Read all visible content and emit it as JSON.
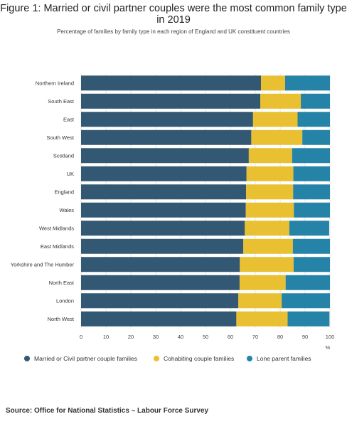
{
  "title": "Figure 1: Married or civil partner couples were the most common family type in 2019",
  "subtitle": "Percentage of families by family type in each region of England and UK constituent countries",
  "source": "Source: Office for National Statistics – Labour Force Survey",
  "colors": {
    "married": "#335873",
    "cohabiting": "#e8c031",
    "lone": "#2683a8"
  },
  "chart_data": {
    "type": "bar",
    "orientation": "horizontal",
    "stacked": true,
    "categories": [
      "Northern Ireland",
      "South East",
      "East",
      "South West",
      "Scotland",
      "UK",
      "England",
      "Wales",
      "West Midlands",
      "East Midlands",
      "Yorkshire and The Humber",
      "North East",
      "London",
      "North West"
    ],
    "series": [
      {
        "name": "Married or Civil partner couple families",
        "values": [
          72.3,
          72.0,
          69.1,
          68.4,
          67.4,
          66.5,
          66.3,
          66.2,
          65.8,
          65.2,
          63.8,
          63.7,
          63.2,
          62.4
        ]
      },
      {
        "name": "Cohabiting couple families",
        "values": [
          9.7,
          16.3,
          17.9,
          20.5,
          17.4,
          18.8,
          18.9,
          19.3,
          17.9,
          19.9,
          21.6,
          18.5,
          17.4,
          20.6
        ]
      },
      {
        "name": "Lone parent families",
        "values": [
          18.0,
          11.7,
          13.0,
          11.1,
          15.2,
          14.7,
          14.8,
          14.5,
          16.0,
          14.9,
          14.6,
          17.8,
          19.4,
          16.8
        ]
      }
    ],
    "xlim": [
      0,
      100
    ],
    "xticks": [
      0,
      10,
      20,
      30,
      40,
      50,
      60,
      70,
      80,
      90,
      100
    ],
    "xunit": "%",
    "grid": true,
    "legend": "bottom"
  }
}
